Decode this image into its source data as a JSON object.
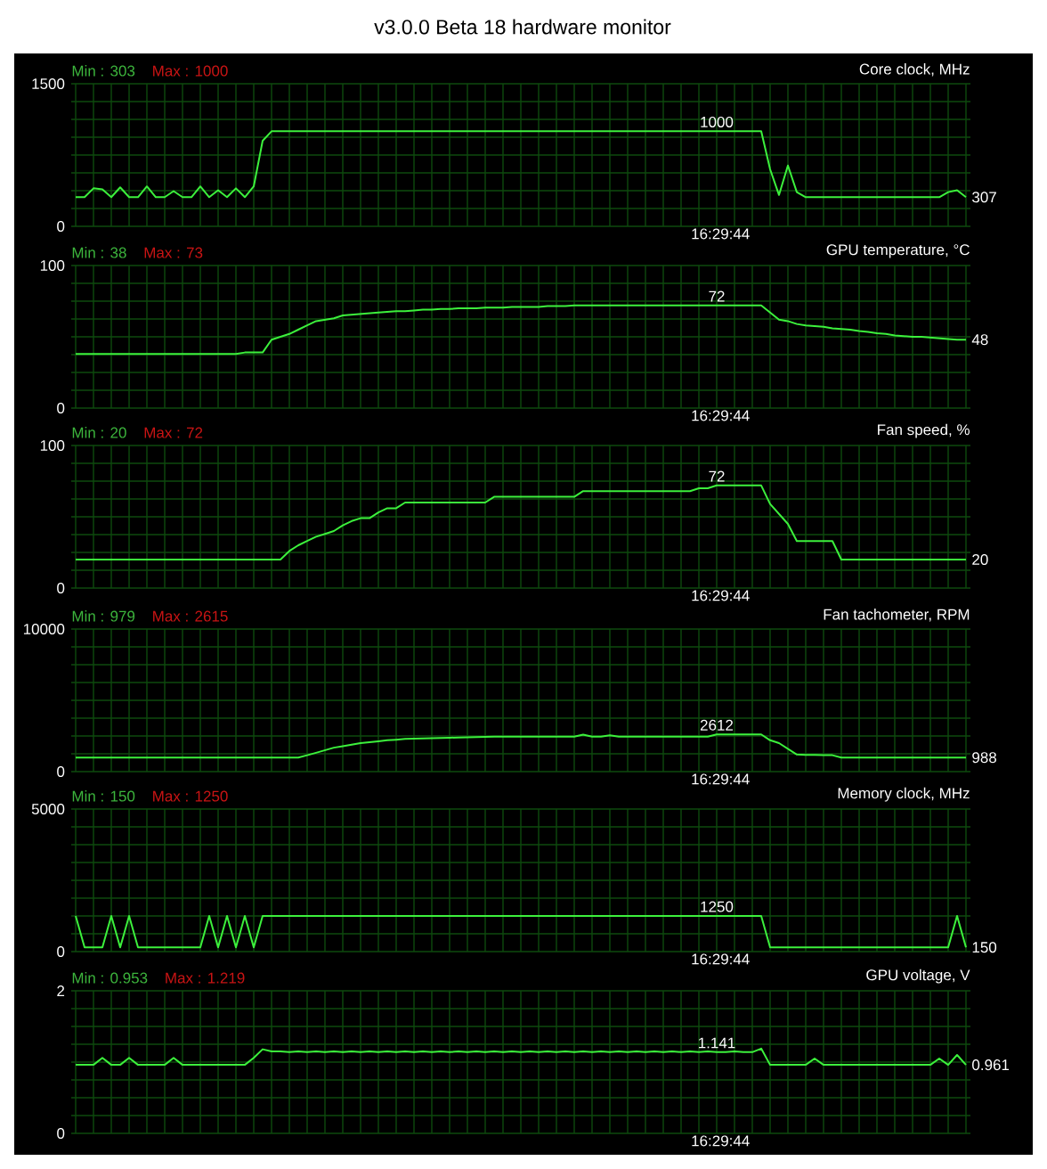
{
  "chart_data": [
    {
      "type": "line",
      "title": "Core clock, MHz",
      "annotations": [
        "Min : 303",
        "Max : 1000",
        "16:29:44",
        "v3.0.0 Beta 18 hardware monitor"
      ],
      "categories": [
        null,
        null,
        null,
        null,
        null,
        null,
        null,
        null,
        null,
        null,
        null,
        null,
        null,
        null,
        null,
        null,
        null,
        null,
        null,
        null,
        null,
        null,
        null,
        null,
        null,
        null,
        null,
        null,
        null,
        null,
        null,
        null,
        null,
        null,
        null,
        null,
        null,
        null,
        null,
        null,
        null,
        null,
        null,
        null,
        null,
        null,
        null,
        null,
        null,
        null,
        null,
        null,
        null,
        null,
        null,
        null,
        null,
        null,
        null,
        null,
        null,
        null,
        null,
        null,
        null,
        null,
        null,
        null,
        null,
        null,
        null,
        null,
        null,
        null,
        null,
        null,
        null,
        null,
        null,
        null,
        null,
        null,
        null,
        null,
        null,
        null,
        null,
        null,
        null,
        null,
        null,
        null,
        null,
        null,
        null,
        null,
        null,
        null,
        null,
        null,
        null
      ],
      "series": [
        {
          "color": "#3cf03c",
          "values": [
            307,
            307,
            400,
            390,
            307,
            410,
            307,
            307,
            420,
            307,
            307,
            370,
            307,
            307,
            420,
            307,
            380,
            307,
            400,
            307,
            420,
            900,
            1000,
            1000,
            1000,
            1000,
            1000,
            1000,
            1000,
            1000,
            1000,
            1000,
            1000,
            1000,
            1000,
            1000,
            1000,
            1000,
            1000,
            1000,
            1000,
            1000,
            1000,
            1000,
            1000,
            1000,
            1000,
            1000,
            1000,
            1000,
            1000,
            1000,
            1000,
            1000,
            1000,
            1000,
            1000,
            1000,
            1000,
            1000,
            1000,
            1000,
            1000,
            1000,
            1000,
            1000,
            1000,
            1000,
            1000,
            1000,
            1000,
            1000,
            1000,
            1000,
            1000,
            1000,
            1000,
            1000,
            600,
            330,
            640,
            360,
            307,
            307,
            307,
            307,
            307,
            307,
            307,
            307,
            307,
            307,
            307,
            307,
            307,
            307,
            307,
            307,
            360,
            380,
            307
          ],
          "value_labels": [
            null,
            null,
            null,
            null,
            null,
            null,
            null,
            null,
            null,
            null,
            null,
            null,
            null,
            null,
            null,
            null,
            null,
            null,
            null,
            null,
            null,
            null,
            null,
            null,
            null,
            null,
            null,
            null,
            null,
            null,
            null,
            null,
            null,
            null,
            null,
            null,
            null,
            null,
            null,
            null,
            null,
            null,
            null,
            null,
            null,
            null,
            null,
            null,
            null,
            null,
            null,
            null,
            null,
            null,
            null,
            null,
            null,
            null,
            null,
            null,
            null,
            null,
            null,
            null,
            null,
            null,
            null,
            null,
            null,
            null,
            null,
            null,
            "1000",
            null,
            null,
            null,
            null,
            null,
            null,
            null,
            null,
            null,
            null,
            null,
            null,
            null,
            null,
            null,
            null,
            null,
            null,
            null,
            null,
            null,
            null,
            null,
            null,
            null,
            null,
            null,
            "307"
          ]
        }
      ],
      "ylim": [
        0,
        1500
      ],
      "yticks": [
        0,
        {
          "value": 187.5,
          "label": null
        },
        {
          "value": 375,
          "label": null
        },
        {
          "value": 562.5,
          "label": null
        },
        {
          "value": 750,
          "label": null
        },
        {
          "value": 937.5,
          "label": null
        },
        {
          "value": 1125,
          "label": null
        },
        {
          "value": 1312.5,
          "label": null
        },
        1500
      ],
      "grid": true
    },
    {
      "type": "line",
      "title": "GPU temperature, °C",
      "annotations": [
        "Min : 38",
        "Max : 73",
        "16:29:44"
      ],
      "categories": [
        null,
        null,
        null,
        null,
        null,
        null,
        null,
        null,
        null,
        null,
        null,
        null,
        null,
        null,
        null,
        null,
        null,
        null,
        null,
        null,
        null,
        null,
        null,
        null,
        null,
        null,
        null,
        null,
        null,
        null,
        null,
        null,
        null,
        null,
        null,
        null,
        null,
        null,
        null,
        null,
        null,
        null,
        null,
        null,
        null,
        null,
        null,
        null,
        null,
        null,
        null,
        null,
        null,
        null,
        null,
        null,
        null,
        null,
        null,
        null,
        null,
        null,
        null,
        null,
        null,
        null,
        null,
        null,
        null,
        null,
        null,
        null,
        null,
        null,
        null,
        null,
        null,
        null,
        null,
        null,
        null,
        null,
        null,
        null,
        null,
        null,
        null,
        null,
        null,
        null,
        null,
        null,
        null,
        null,
        null,
        null,
        null,
        null,
        null,
        null,
        null
      ],
      "series": [
        {
          "color": "#3cf03c",
          "values": [
            38,
            38,
            38,
            38,
            38,
            38,
            38,
            38,
            38,
            38,
            38,
            38,
            38,
            38,
            38,
            38,
            38,
            38,
            38,
            39,
            39,
            39,
            48,
            50,
            52,
            55,
            58,
            61,
            62,
            63,
            65,
            65.5,
            66,
            66.5,
            67,
            67.5,
            68,
            68,
            68.5,
            69,
            69,
            69.5,
            69.5,
            70,
            70,
            70,
            70.5,
            70.5,
            70.5,
            71,
            71,
            71,
            71,
            71.5,
            71.5,
            71.5,
            72,
            72,
            72,
            72,
            72,
            72,
            72,
            72,
            72,
            72,
            72,
            72,
            72,
            72,
            72,
            72,
            72,
            72,
            72,
            72,
            72,
            72,
            67,
            62,
            61,
            59,
            58,
            57.5,
            57,
            56,
            55.5,
            55,
            54,
            53.5,
            52.5,
            52,
            51,
            50.5,
            50,
            50,
            49.5,
            49,
            48.5,
            48,
            48
          ],
          "value_labels": [
            null,
            null,
            null,
            null,
            null,
            null,
            null,
            null,
            null,
            null,
            null,
            null,
            null,
            null,
            null,
            null,
            null,
            null,
            null,
            null,
            null,
            null,
            null,
            null,
            null,
            null,
            null,
            null,
            null,
            null,
            null,
            null,
            null,
            null,
            null,
            null,
            null,
            null,
            null,
            null,
            null,
            null,
            null,
            null,
            null,
            null,
            null,
            null,
            null,
            null,
            null,
            null,
            null,
            null,
            null,
            null,
            null,
            null,
            null,
            null,
            null,
            null,
            null,
            null,
            null,
            null,
            null,
            null,
            null,
            null,
            null,
            null,
            "72",
            null,
            null,
            null,
            null,
            null,
            null,
            null,
            null,
            null,
            null,
            null,
            null,
            null,
            null,
            null,
            null,
            null,
            null,
            null,
            null,
            null,
            null,
            null,
            null,
            null,
            null,
            null,
            "48"
          ]
        }
      ],
      "ylim": [
        0,
        100
      ],
      "yticks": [
        0,
        {
          "value": 12.5,
          "label": null
        },
        {
          "value": 25,
          "label": null
        },
        {
          "value": 37.5,
          "label": null
        },
        {
          "value": 50,
          "label": null
        },
        {
          "value": 62.5,
          "label": null
        },
        {
          "value": 75,
          "label": null
        },
        {
          "value": 87.5,
          "label": null
        },
        100
      ],
      "grid": true
    },
    {
      "type": "line",
      "title": "Fan speed, %",
      "annotations": [
        "Min : 20",
        "Max : 72",
        "16:29:44"
      ],
      "categories": [
        null,
        null,
        null,
        null,
        null,
        null,
        null,
        null,
        null,
        null,
        null,
        null,
        null,
        null,
        null,
        null,
        null,
        null,
        null,
        null,
        null,
        null,
        null,
        null,
        null,
        null,
        null,
        null,
        null,
        null,
        null,
        null,
        null,
        null,
        null,
        null,
        null,
        null,
        null,
        null,
        null,
        null,
        null,
        null,
        null,
        null,
        null,
        null,
        null,
        null,
        null,
        null,
        null,
        null,
        null,
        null,
        null,
        null,
        null,
        null,
        null,
        null,
        null,
        null,
        null,
        null,
        null,
        null,
        null,
        null,
        null,
        null,
        null,
        null,
        null,
        null,
        null,
        null,
        null,
        null,
        null,
        null,
        null,
        null,
        null,
        null,
        null,
        null,
        null,
        null,
        null,
        null,
        null,
        null,
        null,
        null,
        null,
        null,
        null,
        null,
        null
      ],
      "series": [
        {
          "color": "#3cf03c",
          "values": [
            20,
            20,
            20,
            20,
            20,
            20,
            20,
            20,
            20,
            20,
            20,
            20,
            20,
            20,
            20,
            20,
            20,
            20,
            20,
            20,
            20,
            20,
            20,
            20,
            26,
            30,
            33,
            36,
            38,
            40,
            44,
            47,
            49,
            49,
            53,
            56,
            56,
            60,
            60,
            60,
            60,
            60,
            60,
            60,
            60,
            60,
            60,
            64,
            64,
            64,
            64,
            64,
            64,
            64,
            64,
            64,
            64,
            68,
            68,
            68,
            68,
            68,
            68,
            68,
            68,
            68,
            68,
            68,
            68,
            68,
            70,
            70,
            72,
            72,
            72,
            72,
            72,
            72,
            59,
            52,
            45,
            33,
            33,
            33,
            33,
            33,
            20,
            20,
            20,
            20,
            20,
            20,
            20,
            20,
            20,
            20,
            20,
            20,
            20,
            20,
            20
          ],
          "value_labels": [
            null,
            null,
            null,
            null,
            null,
            null,
            null,
            null,
            null,
            null,
            null,
            null,
            null,
            null,
            null,
            null,
            null,
            null,
            null,
            null,
            null,
            null,
            null,
            null,
            null,
            null,
            null,
            null,
            null,
            null,
            null,
            null,
            null,
            null,
            null,
            null,
            null,
            null,
            null,
            null,
            null,
            null,
            null,
            null,
            null,
            null,
            null,
            null,
            null,
            null,
            null,
            null,
            null,
            null,
            null,
            null,
            null,
            null,
            null,
            null,
            null,
            null,
            null,
            null,
            null,
            null,
            null,
            null,
            null,
            null,
            null,
            null,
            "72",
            null,
            null,
            null,
            null,
            null,
            null,
            null,
            null,
            null,
            null,
            null,
            null,
            null,
            null,
            null,
            null,
            null,
            null,
            null,
            null,
            null,
            null,
            null,
            null,
            null,
            null,
            null,
            "20"
          ]
        }
      ],
      "ylim": [
        0,
        100
      ],
      "yticks": [
        0,
        {
          "value": 12.5,
          "label": null
        },
        {
          "value": 25,
          "label": null
        },
        {
          "value": 37.5,
          "label": null
        },
        {
          "value": 50,
          "label": null
        },
        {
          "value": 62.5,
          "label": null
        },
        {
          "value": 75,
          "label": null
        },
        {
          "value": 87.5,
          "label": null
        },
        100
      ],
      "grid": true
    },
    {
      "type": "line",
      "title": "Fan tachometer, RPM",
      "annotations": [
        "Min : 979",
        "Max : 2615",
        "16:29:44"
      ],
      "categories": [
        null,
        null,
        null,
        null,
        null,
        null,
        null,
        null,
        null,
        null,
        null,
        null,
        null,
        null,
        null,
        null,
        null,
        null,
        null,
        null,
        null,
        null,
        null,
        null,
        null,
        null,
        null,
        null,
        null,
        null,
        null,
        null,
        null,
        null,
        null,
        null,
        null,
        null,
        null,
        null,
        null,
        null,
        null,
        null,
        null,
        null,
        null,
        null,
        null,
        null,
        null,
        null,
        null,
        null,
        null,
        null,
        null,
        null,
        null,
        null,
        null,
        null,
        null,
        null,
        null,
        null,
        null,
        null,
        null,
        null,
        null,
        null,
        null,
        null,
        null,
        null,
        null,
        null,
        null,
        null,
        null,
        null,
        null,
        null,
        null,
        null,
        null,
        null,
        null,
        null,
        null,
        null,
        null,
        null,
        null,
        null,
        null,
        null,
        null,
        null,
        null
      ],
      "series": [
        {
          "color": "#3cf03c",
          "values": [
            988,
            988,
            988,
            988,
            988,
            988,
            988,
            988,
            988,
            988,
            988,
            988,
            988,
            988,
            988,
            988,
            988,
            988,
            988,
            988,
            988,
            988,
            988,
            988,
            988,
            988,
            1150,
            1320,
            1500,
            1680,
            1780,
            1890,
            2000,
            2060,
            2130,
            2200,
            2240,
            2290,
            2320,
            2330,
            2350,
            2360,
            2380,
            2390,
            2410,
            2420,
            2440,
            2450,
            2450,
            2450,
            2450,
            2450,
            2450,
            2450,
            2450,
            2450,
            2450,
            2600,
            2450,
            2450,
            2550,
            2450,
            2450,
            2450,
            2450,
            2450,
            2450,
            2450,
            2450,
            2450,
            2450,
            2450,
            2612,
            2612,
            2612,
            2612,
            2612,
            2612,
            2200,
            2000,
            1600,
            1200,
            1180,
            1170,
            1150,
            1150,
            988,
            988,
            988,
            988,
            988,
            988,
            988,
            988,
            988,
            988,
            988,
            988,
            988,
            988,
            988
          ],
          "value_labels": [
            null,
            null,
            null,
            null,
            null,
            null,
            null,
            null,
            null,
            null,
            null,
            null,
            null,
            null,
            null,
            null,
            null,
            null,
            null,
            null,
            null,
            null,
            null,
            null,
            null,
            null,
            null,
            null,
            null,
            null,
            null,
            null,
            null,
            null,
            null,
            null,
            null,
            null,
            null,
            null,
            null,
            null,
            null,
            null,
            null,
            null,
            null,
            null,
            null,
            null,
            null,
            null,
            null,
            null,
            null,
            null,
            null,
            null,
            null,
            null,
            null,
            null,
            null,
            null,
            null,
            null,
            null,
            null,
            null,
            null,
            null,
            null,
            "2612",
            null,
            null,
            null,
            null,
            null,
            null,
            null,
            null,
            null,
            null,
            null,
            null,
            null,
            null,
            null,
            null,
            null,
            null,
            null,
            null,
            null,
            null,
            null,
            null,
            null,
            null,
            null,
            "988"
          ]
        }
      ],
      "ylim": [
        0,
        10000
      ],
      "yticks": [
        0,
        {
          "value": 1250,
          "label": null
        },
        {
          "value": 2500,
          "label": null
        },
        {
          "value": 3750,
          "label": null
        },
        {
          "value": 5000,
          "label": null
        },
        {
          "value": 6250,
          "label": null
        },
        {
          "value": 7500,
          "label": null
        },
        {
          "value": 8750,
          "label": null
        },
        10000
      ],
      "grid": true
    },
    {
      "type": "line",
      "title": "Memory clock, MHz",
      "annotations": [
        "Min : 150",
        "Max : 1250",
        "16:29:44"
      ],
      "categories": [
        null,
        null,
        null,
        null,
        null,
        null,
        null,
        null,
        null,
        null,
        null,
        null,
        null,
        null,
        null,
        null,
        null,
        null,
        null,
        null,
        null,
        null,
        null,
        null,
        null,
        null,
        null,
        null,
        null,
        null,
        null,
        null,
        null,
        null,
        null,
        null,
        null,
        null,
        null,
        null,
        null,
        null,
        null,
        null,
        null,
        null,
        null,
        null,
        null,
        null,
        null,
        null,
        null,
        null,
        null,
        null,
        null,
        null,
        null,
        null,
        null,
        null,
        null,
        null,
        null,
        null,
        null,
        null,
        null,
        null,
        null,
        null,
        null,
        null,
        null,
        null,
        null,
        null,
        null,
        null,
        null,
        null,
        null,
        null,
        null,
        null,
        null,
        null,
        null,
        null,
        null,
        null,
        null,
        null,
        null,
        null,
        null,
        null,
        null,
        null,
        null
      ],
      "series": [
        {
          "color": "#3cf03c",
          "values": [
            1250,
            150,
            150,
            150,
            1250,
            150,
            1250,
            150,
            150,
            150,
            150,
            150,
            150,
            150,
            150,
            1250,
            150,
            1250,
            150,
            1250,
            150,
            1250,
            1250,
            1250,
            1250,
            1250,
            1250,
            1250,
            1250,
            1250,
            1250,
            1250,
            1250,
            1250,
            1250,
            1250,
            1250,
            1250,
            1250,
            1250,
            1250,
            1250,
            1250,
            1250,
            1250,
            1250,
            1250,
            1250,
            1250,
            1250,
            1250,
            1250,
            1250,
            1250,
            1250,
            1250,
            1250,
            1250,
            1250,
            1250,
            1250,
            1250,
            1250,
            1250,
            1250,
            1250,
            1250,
            1250,
            1250,
            1250,
            1250,
            1250,
            1250,
            1250,
            1250,
            1250,
            1250,
            1250,
            150,
            150,
            150,
            150,
            150,
            150,
            150,
            150,
            150,
            150,
            150,
            150,
            150,
            150,
            150,
            150,
            150,
            150,
            150,
            150,
            150,
            1250,
            150
          ],
          "value_labels": [
            null,
            null,
            null,
            null,
            null,
            null,
            null,
            null,
            null,
            null,
            null,
            null,
            null,
            null,
            null,
            null,
            null,
            null,
            null,
            null,
            null,
            null,
            null,
            null,
            null,
            null,
            null,
            null,
            null,
            null,
            null,
            null,
            null,
            null,
            null,
            null,
            null,
            null,
            null,
            null,
            null,
            null,
            null,
            null,
            null,
            null,
            null,
            null,
            null,
            null,
            null,
            null,
            null,
            null,
            null,
            null,
            null,
            null,
            null,
            null,
            null,
            null,
            null,
            null,
            null,
            null,
            null,
            null,
            null,
            null,
            null,
            null,
            "1250",
            null,
            null,
            null,
            null,
            null,
            null,
            null,
            null,
            null,
            null,
            null,
            null,
            null,
            null,
            null,
            null,
            null,
            null,
            null,
            null,
            null,
            null,
            null,
            null,
            null,
            null,
            null,
            "150"
          ]
        }
      ],
      "ylim": [
        0,
        5000
      ],
      "yticks": [
        0,
        {
          "value": 625,
          "label": null
        },
        {
          "value": 1250,
          "label": null
        },
        {
          "value": 1875,
          "label": null
        },
        {
          "value": 2500,
          "label": null
        },
        {
          "value": 3125,
          "label": null
        },
        {
          "value": 3750,
          "label": null
        },
        {
          "value": 4375,
          "label": null
        },
        5000
      ],
      "grid": true
    },
    {
      "type": "line",
      "title": "GPU voltage, V",
      "annotations": [
        "Min : 0.953",
        "Max : 1.219",
        "16:29:44"
      ],
      "categories": [
        null,
        null,
        null,
        null,
        null,
        null,
        null,
        null,
        null,
        null,
        null,
        null,
        null,
        null,
        null,
        null,
        null,
        null,
        null,
        null,
        null,
        null,
        null,
        null,
        null,
        null,
        null,
        null,
        null,
        null,
        null,
        null,
        null,
        null,
        null,
        null,
        null,
        null,
        null,
        null,
        null,
        null,
        null,
        null,
        null,
        null,
        null,
        null,
        null,
        null,
        null,
        null,
        null,
        null,
        null,
        null,
        null,
        null,
        null,
        null,
        null,
        null,
        null,
        null,
        null,
        null,
        null,
        null,
        null,
        null,
        null,
        null,
        null,
        null,
        null,
        null,
        null,
        null,
        null,
        null,
        null,
        null,
        null,
        null,
        null,
        null,
        null,
        null,
        null,
        null,
        null,
        null,
        null,
        null,
        null,
        null,
        null,
        null,
        null,
        null,
        null
      ],
      "series": [
        {
          "color": "#3cf03c",
          "values": [
            0.961,
            0.961,
            0.961,
            1.06,
            0.961,
            0.961,
            1.06,
            0.961,
            0.961,
            0.961,
            0.961,
            1.06,
            0.961,
            0.961,
            0.961,
            0.961,
            0.961,
            0.961,
            0.961,
            0.961,
            1.06,
            1.18,
            1.15,
            1.15,
            1.14,
            1.15,
            1.14,
            1.15,
            1.14,
            1.15,
            1.14,
            1.15,
            1.14,
            1.15,
            1.14,
            1.15,
            1.14,
            1.15,
            1.14,
            1.15,
            1.14,
            1.15,
            1.14,
            1.15,
            1.14,
            1.15,
            1.14,
            1.15,
            1.14,
            1.15,
            1.14,
            1.15,
            1.14,
            1.15,
            1.14,
            1.15,
            1.14,
            1.15,
            1.14,
            1.15,
            1.14,
            1.15,
            1.14,
            1.15,
            1.14,
            1.15,
            1.14,
            1.15,
            1.14,
            1.15,
            1.14,
            1.15,
            1.141,
            1.14,
            1.15,
            1.14,
            1.14,
            1.19,
            0.961,
            0.961,
            0.961,
            0.961,
            0.961,
            1.05,
            0.961,
            0.961,
            0.961,
            0.961,
            0.961,
            0.961,
            0.961,
            0.961,
            0.961,
            0.961,
            0.961,
            0.961,
            0.961,
            1.05,
            0.961,
            1.1,
            0.961
          ],
          "value_labels": [
            null,
            null,
            null,
            null,
            null,
            null,
            null,
            null,
            null,
            null,
            null,
            null,
            null,
            null,
            null,
            null,
            null,
            null,
            null,
            null,
            null,
            null,
            null,
            null,
            null,
            null,
            null,
            null,
            null,
            null,
            null,
            null,
            null,
            null,
            null,
            null,
            null,
            null,
            null,
            null,
            null,
            null,
            null,
            null,
            null,
            null,
            null,
            null,
            null,
            null,
            null,
            null,
            null,
            null,
            null,
            null,
            null,
            null,
            null,
            null,
            null,
            null,
            null,
            null,
            null,
            null,
            null,
            null,
            null,
            null,
            null,
            null,
            "1.141",
            null,
            null,
            null,
            null,
            null,
            null,
            null,
            null,
            null,
            null,
            null,
            null,
            null,
            null,
            null,
            null,
            null,
            null,
            null,
            null,
            null,
            null,
            null,
            null,
            null,
            null,
            null,
            "0.961"
          ]
        }
      ],
      "ylim": [
        0,
        2
      ],
      "yticks": [
        0,
        {
          "value": 0.25,
          "label": null
        },
        {
          "value": 0.5,
          "label": null
        },
        {
          "value": 0.75,
          "label": null
        },
        {
          "value": 1,
          "label": null
        },
        {
          "value": 1.25,
          "label": null
        },
        {
          "value": 1.5,
          "label": null
        },
        {
          "value": 1.75,
          "label": null
        },
        2
      ],
      "grid": true
    }
  ]
}
